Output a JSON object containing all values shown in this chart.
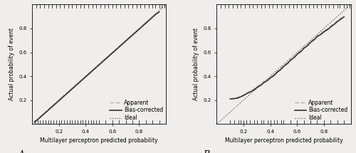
{
  "panel_A": {
    "label": "A",
    "xlim": [
      0.0,
      1.0
    ],
    "ylim": [
      0.0,
      1.0
    ],
    "xticks": [
      0.2,
      0.4,
      0.6,
      0.8
    ],
    "yticks": [
      0.2,
      0.4,
      0.6,
      0.8
    ],
    "xlabel": "Multilayer perceptron predicted probability",
    "ylabel": "Actual probability of event",
    "apparent_x": [
      0.02,
      0.05,
      0.08,
      0.1,
      0.12,
      0.15,
      0.18,
      0.2,
      0.23,
      0.25,
      0.28,
      0.3,
      0.33,
      0.35,
      0.38,
      0.4,
      0.43,
      0.45,
      0.48,
      0.5,
      0.53,
      0.55,
      0.58,
      0.6,
      0.63,
      0.65,
      0.68,
      0.7,
      0.73,
      0.75,
      0.78,
      0.8,
      0.83,
      0.85,
      0.88,
      0.9,
      0.93,
      0.95
    ],
    "apparent_y": [
      0.02,
      0.05,
      0.08,
      0.1,
      0.12,
      0.15,
      0.18,
      0.2,
      0.23,
      0.25,
      0.28,
      0.3,
      0.33,
      0.35,
      0.38,
      0.4,
      0.43,
      0.45,
      0.48,
      0.5,
      0.53,
      0.55,
      0.58,
      0.6,
      0.63,
      0.65,
      0.68,
      0.7,
      0.73,
      0.75,
      0.78,
      0.8,
      0.83,
      0.85,
      0.88,
      0.9,
      0.93,
      0.945
    ],
    "bias_x": [
      0.02,
      0.05,
      0.08,
      0.1,
      0.12,
      0.15,
      0.18,
      0.2,
      0.23,
      0.25,
      0.28,
      0.3,
      0.33,
      0.35,
      0.38,
      0.4,
      0.43,
      0.45,
      0.48,
      0.5,
      0.53,
      0.55,
      0.58,
      0.6,
      0.63,
      0.65,
      0.68,
      0.7,
      0.73,
      0.75,
      0.78,
      0.8,
      0.83,
      0.85,
      0.88,
      0.9,
      0.93,
      0.95
    ],
    "bias_y": [
      0.016,
      0.044,
      0.074,
      0.094,
      0.114,
      0.144,
      0.174,
      0.194,
      0.224,
      0.244,
      0.274,
      0.294,
      0.324,
      0.344,
      0.374,
      0.394,
      0.424,
      0.444,
      0.474,
      0.494,
      0.524,
      0.544,
      0.574,
      0.594,
      0.624,
      0.644,
      0.674,
      0.694,
      0.724,
      0.744,
      0.774,
      0.794,
      0.824,
      0.844,
      0.874,
      0.894,
      0.924,
      0.938
    ],
    "rug_bottom": [
      0.02,
      0.04,
      0.06,
      0.08,
      0.1,
      0.12,
      0.14,
      0.16,
      0.18,
      0.2,
      0.22,
      0.24,
      0.26,
      0.28,
      0.3,
      0.32,
      0.34,
      0.36,
      0.38,
      0.4,
      0.42,
      0.44,
      0.46,
      0.48,
      0.5,
      0.55,
      0.6,
      0.65,
      0.7,
      0.75,
      0.8,
      0.85,
      0.9,
      0.95
    ],
    "rug_top": [
      0.03,
      0.06,
      0.09,
      0.12,
      0.15,
      0.18,
      0.21,
      0.24,
      0.27,
      0.3,
      0.33,
      0.36,
      0.39,
      0.42,
      0.45,
      0.48,
      0.51,
      0.54,
      0.57,
      0.6,
      0.63,
      0.66,
      0.69,
      0.72,
      0.75,
      0.78,
      0.81,
      0.84,
      0.87,
      0.9,
      0.92,
      0.95,
      0.97,
      0.99
    ]
  },
  "panel_B": {
    "label": "B",
    "xlim": [
      0.0,
      1.0
    ],
    "ylim": [
      0.0,
      1.0
    ],
    "xticks": [
      0.2,
      0.4,
      0.6,
      0.8
    ],
    "yticks": [
      0.2,
      0.4,
      0.6,
      0.8
    ],
    "xlabel": "Multilayer perceptron predicted probability",
    "ylabel": "Actual probability of event",
    "apparent_x": [
      0.1,
      0.13,
      0.16,
      0.18,
      0.2,
      0.22,
      0.25,
      0.28,
      0.3,
      0.33,
      0.35,
      0.38,
      0.4,
      0.43,
      0.45,
      0.48,
      0.5,
      0.53,
      0.55,
      0.58,
      0.6,
      0.63,
      0.65,
      0.68,
      0.7,
      0.73,
      0.75,
      0.78,
      0.8,
      0.83,
      0.85,
      0.88,
      0.9,
      0.95
    ],
    "apparent_y": [
      0.21,
      0.215,
      0.225,
      0.235,
      0.245,
      0.26,
      0.275,
      0.295,
      0.315,
      0.335,
      0.355,
      0.375,
      0.395,
      0.415,
      0.44,
      0.465,
      0.49,
      0.515,
      0.54,
      0.565,
      0.59,
      0.615,
      0.64,
      0.665,
      0.69,
      0.715,
      0.74,
      0.76,
      0.78,
      0.8,
      0.82,
      0.845,
      0.865,
      0.905
    ],
    "bias_x": [
      0.1,
      0.13,
      0.16,
      0.18,
      0.2,
      0.22,
      0.25,
      0.28,
      0.3,
      0.33,
      0.35,
      0.38,
      0.4,
      0.43,
      0.45,
      0.48,
      0.5,
      0.53,
      0.55,
      0.58,
      0.6,
      0.63,
      0.65,
      0.68,
      0.7,
      0.73,
      0.75,
      0.78,
      0.8,
      0.83,
      0.85,
      0.88,
      0.9,
      0.95
    ],
    "bias_y": [
      0.21,
      0.212,
      0.218,
      0.228,
      0.238,
      0.252,
      0.268,
      0.286,
      0.305,
      0.325,
      0.345,
      0.365,
      0.385,
      0.408,
      0.432,
      0.458,
      0.482,
      0.508,
      0.533,
      0.558,
      0.583,
      0.608,
      0.633,
      0.658,
      0.683,
      0.708,
      0.732,
      0.752,
      0.772,
      0.792,
      0.812,
      0.837,
      0.857,
      0.897
    ],
    "rug_bottom": [
      0.1,
      0.13,
      0.16,
      0.18,
      0.2,
      0.22,
      0.25,
      0.28,
      0.3,
      0.33,
      0.35,
      0.38,
      0.4,
      0.43,
      0.45,
      0.48,
      0.5,
      0.55,
      0.6,
      0.65,
      0.7,
      0.75,
      0.8,
      0.85,
      0.9,
      0.95
    ],
    "rug_top": [
      0.03,
      0.06,
      0.09,
      0.12,
      0.15,
      0.18,
      0.21,
      0.24,
      0.27,
      0.3,
      0.33,
      0.36,
      0.39,
      0.42,
      0.45,
      0.48,
      0.51,
      0.54,
      0.57,
      0.6,
      0.63,
      0.66,
      0.69,
      0.72,
      0.75,
      0.78,
      0.81,
      0.84,
      0.87,
      0.9,
      0.92,
      0.95,
      0.97,
      0.99
    ]
  },
  "apparent_color": "#b0b0b0",
  "bias_color": "#333333",
  "ideal_color": "#555555",
  "bg_color": "#f0eeec",
  "legend_fontsize": 5.5,
  "axis_fontsize": 5.5,
  "tick_fontsize": 5.0,
  "label_fontsize": 9,
  "linewidth_apparent": 1.0,
  "linewidth_bias": 1.2,
  "linewidth_ideal": 0.9
}
